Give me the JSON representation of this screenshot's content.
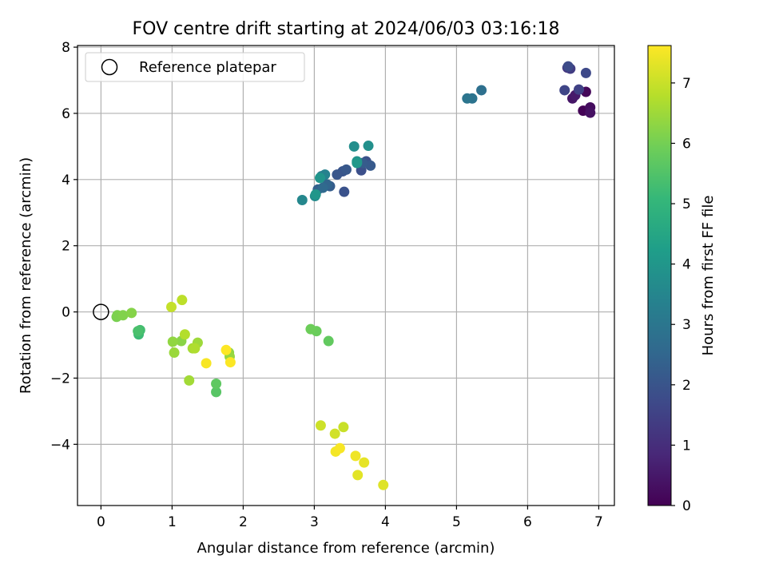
{
  "chart_data": {
    "type": "scatter",
    "title": "FOV centre drift starting at 2024/06/03 03:16:18",
    "xlabel": "Angular distance from reference (arcmin)",
    "ylabel": "Rotation from reference (arcmin)",
    "xlim": [
      -0.33,
      7.22
    ],
    "ylim": [
      -5.85,
      8.05
    ],
    "xticks": [
      0,
      1,
      2,
      3,
      4,
      5,
      6,
      7
    ],
    "yticks": [
      -4,
      -2,
      0,
      2,
      4,
      6,
      8
    ],
    "xtick_labels": [
      "0",
      "1",
      "2",
      "3",
      "4",
      "5",
      "6",
      "7"
    ],
    "ytick_labels": [
      "−4",
      "−2",
      "0",
      "2",
      "4",
      "6",
      "8"
    ],
    "grid": true,
    "legend": {
      "position": "top-left",
      "entries": [
        {
          "label": "Reference platepar",
          "marker": "open-circle"
        }
      ]
    },
    "reference_point": {
      "x": 0,
      "y": 0
    },
    "colorbar": {
      "label": "Hours from first FF file",
      "colormap": "viridis",
      "range": [
        0,
        7.62
      ],
      "ticks": [
        0,
        1,
        2,
        3,
        4,
        5,
        6,
        7
      ],
      "tick_labels": [
        "0",
        "1",
        "2",
        "3",
        "4",
        "5",
        "6",
        "7"
      ]
    },
    "colormap_stops": [
      "#440154",
      "#482878",
      "#3e4989",
      "#31688e",
      "#26828e",
      "#1f9e89",
      "#35b779",
      "#6ece58",
      "#b5de2b",
      "#fde725"
    ],
    "points": [
      {
        "x": 6.78,
        "y": 6.08,
        "h": 0.05
      },
      {
        "x": 6.82,
        "y": 6.65,
        "h": 0.15
      },
      {
        "x": 6.88,
        "y": 6.18,
        "h": 0.25
      },
      {
        "x": 6.88,
        "y": 6.02,
        "h": 0.35
      },
      {
        "x": 6.63,
        "y": 6.45,
        "h": 0.45
      },
      {
        "x": 6.67,
        "y": 6.55,
        "h": 0.55
      },
      {
        "x": 6.56,
        "y": 7.38,
        "h": 1.2
      },
      {
        "x": 6.6,
        "y": 7.35,
        "h": 1.35
      },
      {
        "x": 6.72,
        "y": 6.72,
        "h": 1.5
      },
      {
        "x": 6.52,
        "y": 6.7,
        "h": 1.6
      },
      {
        "x": 6.82,
        "y": 7.22,
        "h": 1.7
      },
      {
        "x": 6.57,
        "y": 7.42,
        "h": 1.75
      },
      {
        "x": 3.66,
        "y": 4.28,
        "h": 1.85
      },
      {
        "x": 3.73,
        "y": 4.55,
        "h": 1.9
      },
      {
        "x": 3.42,
        "y": 3.63,
        "h": 1.95
      },
      {
        "x": 3.4,
        "y": 4.25,
        "h": 2.0
      },
      {
        "x": 3.32,
        "y": 4.15,
        "h": 2.05
      },
      {
        "x": 3.45,
        "y": 4.3,
        "h": 2.1
      },
      {
        "x": 3.79,
        "y": 4.42,
        "h": 2.15
      },
      {
        "x": 3.68,
        "y": 4.5,
        "h": 2.2
      },
      {
        "x": 3.22,
        "y": 3.8,
        "h": 2.25
      },
      {
        "x": 3.05,
        "y": 3.7,
        "h": 2.35
      },
      {
        "x": 3.18,
        "y": 3.85,
        "h": 2.45
      },
      {
        "x": 3.12,
        "y": 3.75,
        "h": 2.6
      },
      {
        "x": 5.35,
        "y": 6.7,
        "h": 2.8
      },
      {
        "x": 5.22,
        "y": 6.45,
        "h": 2.9
      },
      {
        "x": 5.15,
        "y": 6.45,
        "h": 2.95
      },
      {
        "x": 3.1,
        "y": 4.1,
        "h": 3.2
      },
      {
        "x": 3.15,
        "y": 4.15,
        "h": 3.4
      },
      {
        "x": 2.83,
        "y": 3.38,
        "h": 3.55
      },
      {
        "x": 3.01,
        "y": 3.5,
        "h": 3.65
      },
      {
        "x": 3.56,
        "y": 5.0,
        "h": 3.75
      },
      {
        "x": 3.76,
        "y": 5.02,
        "h": 3.8
      },
      {
        "x": 3.6,
        "y": 4.55,
        "h": 3.9
      },
      {
        "x": 3.08,
        "y": 4.05,
        "h": 3.95
      },
      {
        "x": 3.02,
        "y": 3.55,
        "h": 4.0
      },
      {
        "x": 3.6,
        "y": 4.5,
        "h": 4.05
      },
      {
        "x": 0.53,
        "y": -0.68,
        "h": 5.2
      },
      {
        "x": 0.55,
        "y": -0.55,
        "h": 5.3
      },
      {
        "x": 0.52,
        "y": -0.58,
        "h": 5.4
      },
      {
        "x": 1.62,
        "y": -2.42,
        "h": 5.6
      },
      {
        "x": 1.62,
        "y": -2.17,
        "h": 5.7
      },
      {
        "x": 3.2,
        "y": -0.88,
        "h": 5.75
      },
      {
        "x": 3.03,
        "y": -0.58,
        "h": 5.85
      },
      {
        "x": 2.95,
        "y": -0.52,
        "h": 5.9
      },
      {
        "x": 0.22,
        "y": -0.15,
        "h": 6.05
      },
      {
        "x": 0.23,
        "y": -0.1,
        "h": 6.1
      },
      {
        "x": 0.31,
        "y": -0.1,
        "h": 6.15
      },
      {
        "x": 0.43,
        "y": -0.03,
        "h": 6.2
      },
      {
        "x": 1.13,
        "y": -0.88,
        "h": 6.25
      },
      {
        "x": 1.8,
        "y": -1.23,
        "h": 6.3
      },
      {
        "x": 1.01,
        "y": -0.9,
        "h": 6.35
      },
      {
        "x": 1.81,
        "y": -1.35,
        "h": 6.4
      },
      {
        "x": 1.03,
        "y": -1.23,
        "h": 6.45
      },
      {
        "x": 1.36,
        "y": -0.93,
        "h": 6.5
      },
      {
        "x": 1.24,
        "y": -2.07,
        "h": 6.55
      },
      {
        "x": 1.29,
        "y": -1.1,
        "h": 6.6
      },
      {
        "x": 1.32,
        "y": -1.1,
        "h": 6.7
      },
      {
        "x": 1.18,
        "y": -0.68,
        "h": 6.75
      },
      {
        "x": 1.14,
        "y": 0.36,
        "h": 6.85
      },
      {
        "x": 0.99,
        "y": 0.15,
        "h": 6.95
      },
      {
        "x": 3.41,
        "y": -3.48,
        "h": 7.0
      },
      {
        "x": 3.09,
        "y": -3.43,
        "h": 7.05
      },
      {
        "x": 3.29,
        "y": -3.68,
        "h": 7.1
      },
      {
        "x": 3.97,
        "y": -5.23,
        "h": 7.25
      },
      {
        "x": 3.61,
        "y": -4.93,
        "h": 7.3
      },
      {
        "x": 3.7,
        "y": -4.55,
        "h": 7.35
      },
      {
        "x": 3.58,
        "y": -4.35,
        "h": 7.45
      },
      {
        "x": 3.3,
        "y": -4.22,
        "h": 7.5
      },
      {
        "x": 3.36,
        "y": -4.12,
        "h": 7.55
      },
      {
        "x": 1.48,
        "y": -1.55,
        "h": 7.55
      },
      {
        "x": 1.82,
        "y": -1.52,
        "h": 7.6
      },
      {
        "x": 1.76,
        "y": -1.15,
        "h": 7.62
      }
    ]
  }
}
